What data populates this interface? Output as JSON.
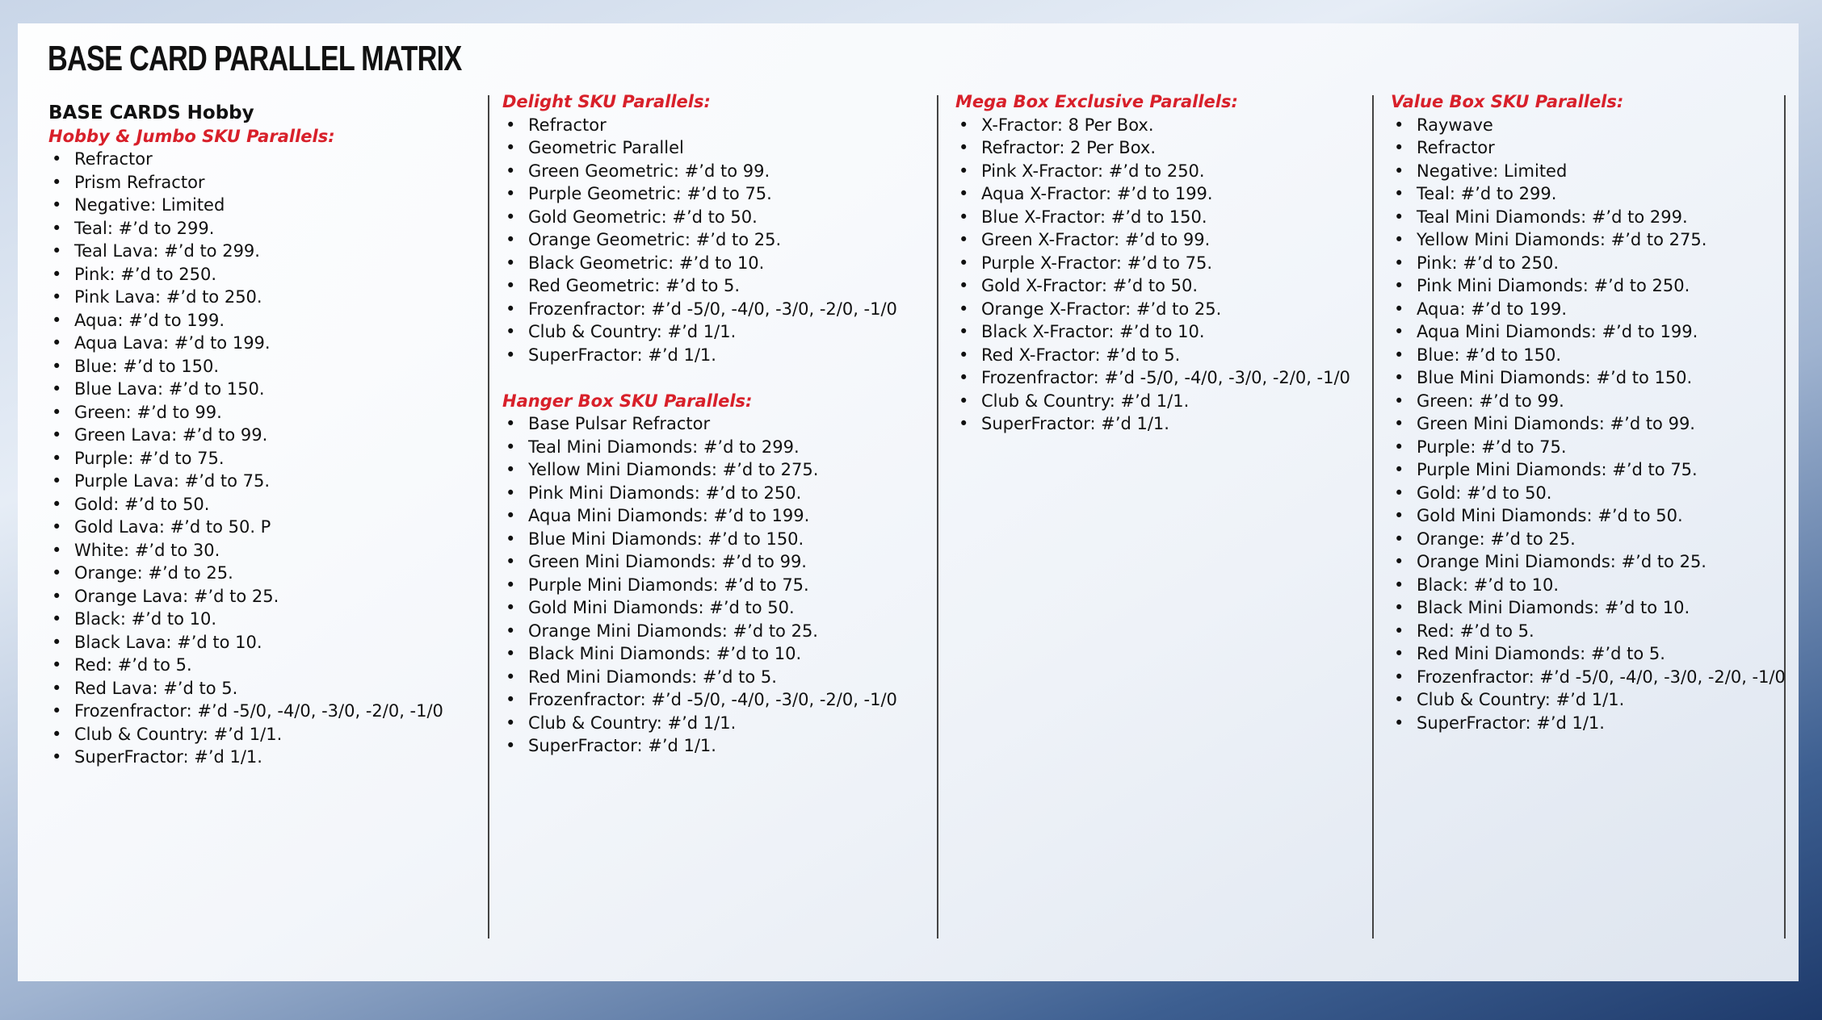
{
  "title": "BASE CARD PARALLEL MATRIX",
  "columns": [
    {
      "label": "BASE CARDS Hobby",
      "sections": [
        {
          "heading": "Hobby & Jumbo SKU Parallels:",
          "items": [
            "Refractor",
            "Prism Refractor",
            "Negative: Limited",
            "Teal: #’d to 299.",
            "Teal Lava: #’d to 299.",
            "Pink: #’d to 250.",
            "Pink Lava: #’d to 250.",
            "Aqua: #’d to 199.",
            "Aqua Lava: #’d to 199.",
            "Blue: #’d to 150.",
            "Blue Lava: #’d to 150.",
            "Green: #’d to 99.",
            "Green Lava: #’d to 99.",
            "Purple: #’d to 75.",
            "Purple Lava: #’d to 75.",
            "Gold: #’d to 50.",
            "Gold Lava: #’d to 50. P",
            "White: #’d to 30.",
            "Orange: #’d to 25.",
            "Orange Lava: #’d to 25.",
            "Black: #’d to 10.",
            "Black Lava: #’d to 10.",
            "Red: #’d to 5.",
            "Red Lava: #’d to 5.",
            "Frozenfractor: #’d -5/0, -4/0, -3/0, -2/0, -1/0",
            "Club & Country: #’d 1/1.",
            "SuperFractor: #’d 1/1."
          ]
        }
      ]
    },
    {
      "sections": [
        {
          "heading": "Delight SKU Parallels:",
          "items": [
            "Refractor",
            "Geometric Parallel",
            "Green Geometric: #’d to 99.",
            "Purple Geometric: #’d to 75.",
            "Gold Geometric: #’d to 50.",
            "Orange Geometric: #’d to 25.",
            "Black Geometric: #’d to 10.",
            "Red Geometric: #’d to 5.",
            "Frozenfractor: #’d -5/0, -4/0, -3/0, -2/0, -1/0",
            "Club & Country: #’d 1/1.",
            "SuperFractor: #’d 1/1."
          ]
        },
        {
          "heading": "Hanger Box SKU Parallels:",
          "items": [
            "Base Pulsar Refractor",
            "Teal Mini Diamonds: #’d to 299.",
            "Yellow Mini Diamonds: #’d to 275.",
            "Pink Mini Diamonds: #’d to 250.",
            "Aqua Mini Diamonds: #’d to 199.",
            "Blue Mini Diamonds: #’d to 150.",
            "Green Mini Diamonds: #’d to 99.",
            "Purple Mini Diamonds: #’d to 75.",
            "Gold Mini Diamonds: #’d to 50.",
            "Orange Mini Diamonds: #’d to 25.",
            "Black Mini Diamonds: #’d to 10.",
            "Red Mini Diamonds: #’d to 5.",
            "Frozenfractor: #’d -5/0, -4/0, -3/0, -2/0, -1/0",
            "Club & Country: #’d 1/1.",
            "SuperFractor: #’d 1/1."
          ]
        }
      ]
    },
    {
      "sections": [
        {
          "heading": "Mega Box Exclusive Parallels:",
          "items": [
            "X-Fractor: 8 Per Box.",
            "Refractor: 2 Per Box.",
            "Pink X-Fractor: #’d to 250.",
            "Aqua X-Fractor: #’d to 199.",
            "Blue X-Fractor: #’d to 150.",
            "Green X-Fractor: #’d to 99.",
            "Purple X-Fractor: #’d to 75.",
            "Gold X-Fractor: #’d to 50.",
            "Orange X-Fractor: #’d to 25.",
            "Black X-Fractor: #’d to 10.",
            "Red X-Fractor: #’d to 5.",
            "Frozenfractor: #’d -5/0, -4/0, -3/0, -2/0, -1/0",
            "Club & Country: #’d 1/1.",
            "SuperFractor: #’d 1/1."
          ]
        }
      ]
    },
    {
      "sections": [
        {
          "heading": "Value Box SKU Parallels:",
          "items": [
            "Raywave",
            "Refractor",
            "Negative: Limited",
            "Teal: #’d to 299.",
            "Teal Mini Diamonds: #’d to 299.",
            "Yellow Mini Diamonds: #’d to 275.",
            "Pink: #’d to 250.",
            "Pink Mini Diamonds: #’d to 250.",
            "Aqua: #’d to 199.",
            "Aqua Mini Diamonds: #’d to 199.",
            "Blue: #’d to 150.",
            "Blue Mini Diamonds: #’d to 150.",
            "Green: #’d to 99.",
            "Green Mini Diamonds: #’d to 99.",
            "Purple: #’d to 75.",
            "Purple Mini Diamonds: #’d to 75.",
            "Gold: #’d to 50.",
            "Gold Mini Diamonds: #’d to 50.",
            "Orange: #’d to 25.",
            "Orange Mini Diamonds: #’d to 25.",
            "Black: #’d to 10.",
            "Black Mini Diamonds: #’d to 10.",
            "Red: #’d to 5.",
            "Red Mini Diamonds: #’d to 5.",
            "Frozenfractor: #’d -5/0, -4/0, -3/0, -2/0, -1/0",
            "Club & Country: #’d 1/1.",
            "SuperFractor: #’d 1/1."
          ]
        }
      ]
    }
  ]
}
